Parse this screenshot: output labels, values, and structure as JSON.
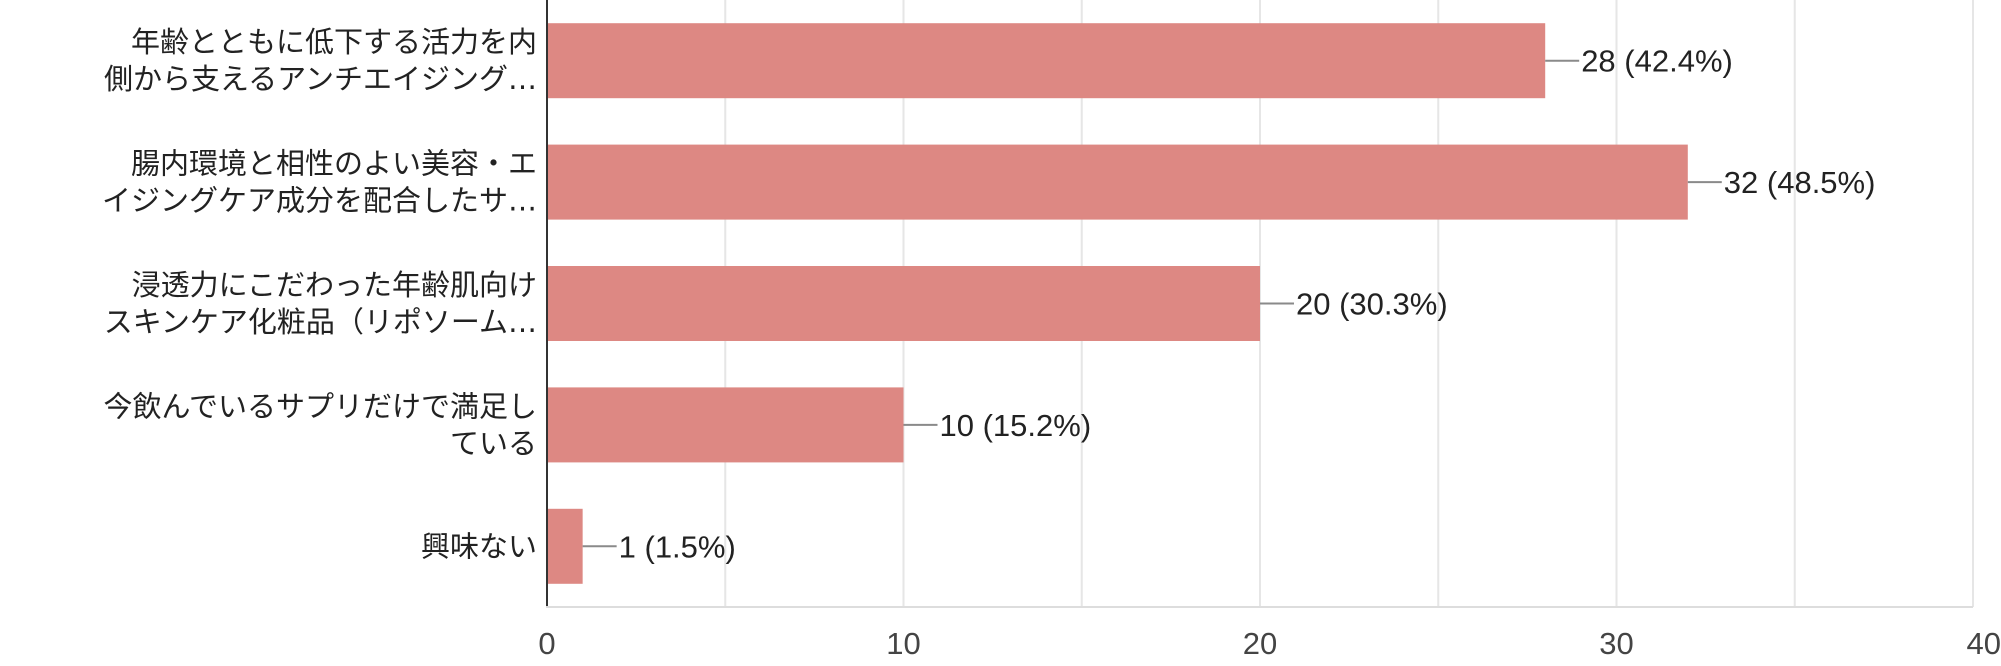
{
  "colors": {
    "bar": "#dd8883",
    "grid": "#e6e6e6",
    "axis": "#333333"
  },
  "chart_data": {
    "type": "bar",
    "orientation": "horizontal",
    "title": "",
    "xlabel": "",
    "ylabel": "",
    "xlim": [
      0,
      40
    ],
    "x_ticks": [
      0,
      10,
      20,
      30,
      40
    ],
    "grid": true,
    "categories": [
      [
        "年齢とともに低下する活力を内",
        "側から支えるアンチエイジング…"
      ],
      [
        "腸内環境と相性のよい美容・エ",
        "イジングケア成分を配合したサ…"
      ],
      [
        "浸透力にこだわった年齢肌向け",
        "スキンケア化粧品（リポソーム…"
      ],
      [
        "今飲んでいるサプリだけで満足し",
        "ている"
      ],
      [
        "興味ない"
      ]
    ],
    "values": [
      28,
      32,
      20,
      10,
      1
    ],
    "data_labels": [
      "28 (42.4%)",
      "32 (48.5%)",
      "20 (30.3%)",
      "10 (15.2%)",
      "1 (1.5%)"
    ]
  }
}
